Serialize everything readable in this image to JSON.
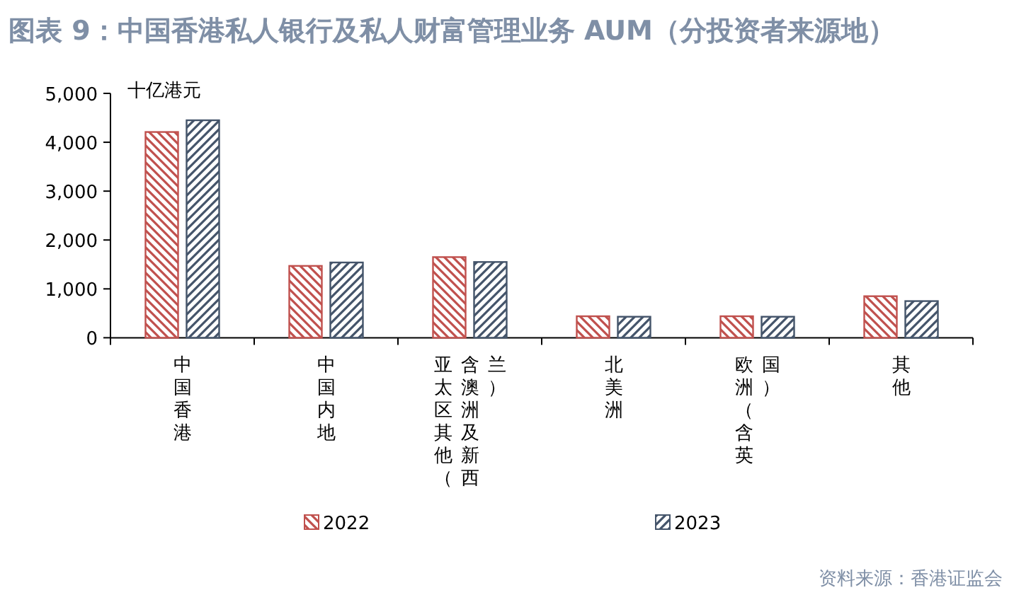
{
  "chart_data": {
    "type": "bar",
    "title": "图表 9：中国香港私人银行及私人财富管理业务 AUM（分投资者来源地）",
    "ylabel": "十亿港元",
    "categories": [
      "中国香港",
      "中国内地",
      "亚太区其他（含澳洲及新西兰）",
      "北美洲",
      "欧洲（含英国）",
      "其他"
    ],
    "series": [
      {
        "name": "2022",
        "color": "#c0504d",
        "values": [
          4210,
          1470,
          1650,
          440,
          440,
          850
        ]
      },
      {
        "name": "2023",
        "color": "#44546a",
        "values": [
          4450,
          1540,
          1550,
          430,
          430,
          750
        ]
      }
    ],
    "ylim": [
      0,
      5000
    ],
    "yticks": [
      {
        "value": 0,
        "label": "0"
      },
      {
        "value": 1000,
        "label": "1,000"
      },
      {
        "value": 2000,
        "label": "2,000"
      },
      {
        "value": 3000,
        "label": "3,000"
      },
      {
        "value": 4000,
        "label": "4,000"
      },
      {
        "value": 5000,
        "label": "5,000"
      }
    ],
    "grid": false,
    "legend": "bottom",
    "annotations": [
      "资料来源：香港证监会"
    ]
  }
}
